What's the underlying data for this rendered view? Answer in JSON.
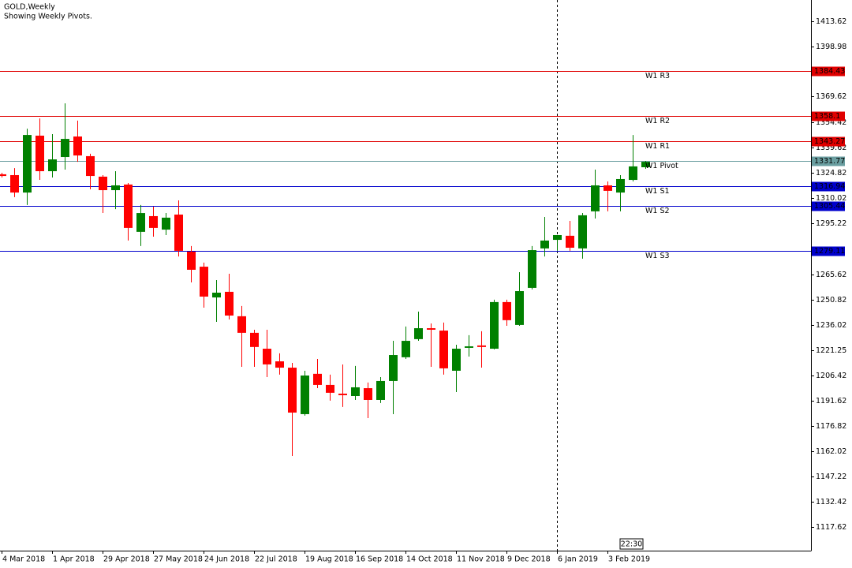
{
  "chart_data": {
    "type": "candlestick",
    "title": "GOLD,Weekly",
    "subtitle": "Showing Weekly Pivots.",
    "time_label": "22:30",
    "categories": [
      "4 Mar 2018",
      null,
      null,
      null,
      "1 Apr 2018",
      null,
      null,
      null,
      "29 Apr 2018",
      null,
      null,
      null,
      "27 May 2018",
      null,
      null,
      null,
      "24 Jun 2018",
      null,
      null,
      null,
      "22 Jul 2018",
      null,
      null,
      null,
      "19 Aug 2018",
      null,
      null,
      null,
      "16 Sep 2018",
      null,
      null,
      null,
      "14 Oct 2018",
      null,
      null,
      null,
      "11 Nov 2018",
      null,
      null,
      null,
      "9 Dec 2018",
      null,
      null,
      null,
      "6 Jan 2019",
      null,
      null,
      null,
      "3 Feb 2019",
      null,
      null,
      null
    ],
    "open": [
      1324.1,
      1323.6,
      1313.4,
      1346.7,
      1325.9,
      1334.2,
      1346.2,
      1334.7,
      1322.7,
      1314.8,
      1318.1,
      1290.4,
      1299.6,
      1291.7,
      1300.5,
      1278.8,
      1270.0,
      1252.0,
      1255.3,
      1241.0,
      1231.3,
      1222.0,
      1214.6,
      1210.9,
      1183.7,
      1207.3,
      1200.8,
      1195.7,
      1194.3,
      1198.9,
      1192.0,
      1203.1,
      1217.0,
      1227.6,
      1234.0,
      1232.6,
      1209.1,
      1222.5,
      1223.9,
      1222.0,
      1249.3,
      1235.9,
      1257.6,
      1280.7,
      1285.7,
      1288.1,
      1280.7,
      1302.4,
      1317.6,
      1313.4,
      1320.8,
      1328.2
    ],
    "high": [
      1325.0,
      1327.7,
      1350.8,
      1356.8,
      1347.6,
      1365.6,
      1355.5,
      1336.1,
      1323.6,
      1325.9,
      1319.0,
      1306.1,
      1305.1,
      1301.4,
      1308.8,
      1282.1,
      1272.4,
      1262.2,
      1265.9,
      1247.0,
      1233.1,
      1233.1,
      1219.3,
      1213.7,
      1209.1,
      1216.0,
      1206.8,
      1212.8,
      1211.9,
      1202.2,
      1205.4,
      1226.6,
      1235.0,
      1243.7,
      1236.8,
      1237.3,
      1224.3,
      1229.9,
      1232.2,
      1250.7,
      1250.7,
      1266.8,
      1282.1,
      1299.1,
      1287.6,
      1296.8,
      1301.4,
      1326.8,
      1319.9,
      1323.6,
      1347.1,
      1331.9
    ],
    "low": [
      1322.2,
      1310.7,
      1306.1,
      1320.8,
      1322.2,
      1326.8,
      1331.4,
      1315.3,
      1301.4,
      1303.7,
      1285.3,
      1282.1,
      1287.6,
      1288.5,
      1276.0,
      1260.8,
      1246.0,
      1237.7,
      1239.1,
      1211.4,
      1211.4,
      1205.4,
      1206.8,
      1159.2,
      1182.8,
      1198.9,
      1191.6,
      1187.9,
      1192.0,
      1181.4,
      1190.2,
      1183.7,
      1216.0,
      1226.6,
      1211.4,
      1206.8,
      1196.6,
      1217.4,
      1210.9,
      1221.6,
      1235.4,
      1235.4,
      1256.7,
      1276.0,
      1279.3,
      1279.3,
      1274.7,
      1298.2,
      1302.4,
      1302.4,
      1319.9,
      1327.3
    ],
    "close": [
      1323.1,
      1313.4,
      1347.1,
      1325.9,
      1332.8,
      1344.8,
      1335.1,
      1323.1,
      1314.8,
      1317.6,
      1292.7,
      1301.4,
      1292.7,
      1298.7,
      1279.3,
      1268.2,
      1252.5,
      1254.8,
      1241.4,
      1231.3,
      1223.0,
      1212.8,
      1210.9,
      1184.6,
      1206.3,
      1200.8,
      1196.2,
      1194.8,
      1199.4,
      1192.0,
      1203.1,
      1218.3,
      1226.6,
      1234.0,
      1233.1,
      1210.5,
      1222.0,
      1223.4,
      1223.0,
      1249.3,
      1238.7,
      1255.7,
      1279.7,
      1285.3,
      1288.5,
      1281.1,
      1300.1,
      1317.6,
      1314.4,
      1321.3,
      1328.7,
      1331.4
    ],
    "up_color": "#008000",
    "down_color": "#ff0000",
    "pivots": [
      {
        "name": "W1 R3",
        "value": 1384.43,
        "color": "#e00000"
      },
      {
        "name": "W1 R2",
        "value": 1358.1,
        "color": "#e00000"
      },
      {
        "name": "W1 R1",
        "value": 1343.27,
        "color": "#e00000"
      },
      {
        "name": "W1 Pivot",
        "value": 1331.77,
        "color": "#6a9ea0"
      },
      {
        "name": "W1 S1",
        "value": 1316.94,
        "color": "#0000cc"
      },
      {
        "name": "W1 S2",
        "value": 1305.44,
        "color": "#0000cc"
      },
      {
        "name": "W1 S3",
        "value": 1279.11,
        "color": "#0000cc"
      }
    ],
    "ylim": [
      1103.8,
      1426.1
    ],
    "yticks": [
      1413.62,
      1398.98,
      1369.62,
      1354.42,
      1339.62,
      1324.82,
      1310.02,
      1295.22,
      1265.62,
      1250.82,
      1236.02,
      1221.25,
      1206.42,
      1191.62,
      1176.82,
      1162.02,
      1147.22,
      1132.42,
      1117.62
    ]
  }
}
